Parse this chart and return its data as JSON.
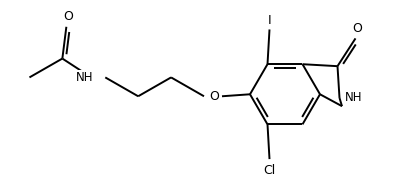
{
  "bg_color": "#ffffff",
  "line_color": "#000000",
  "text_color": "#000000",
  "line_width": 1.4,
  "font_size": 8.5,
  "figsize": [
    3.94,
    1.78
  ],
  "dpi": 100,
  "xlim": [
    0,
    394
  ],
  "ylim": [
    0,
    178
  ]
}
